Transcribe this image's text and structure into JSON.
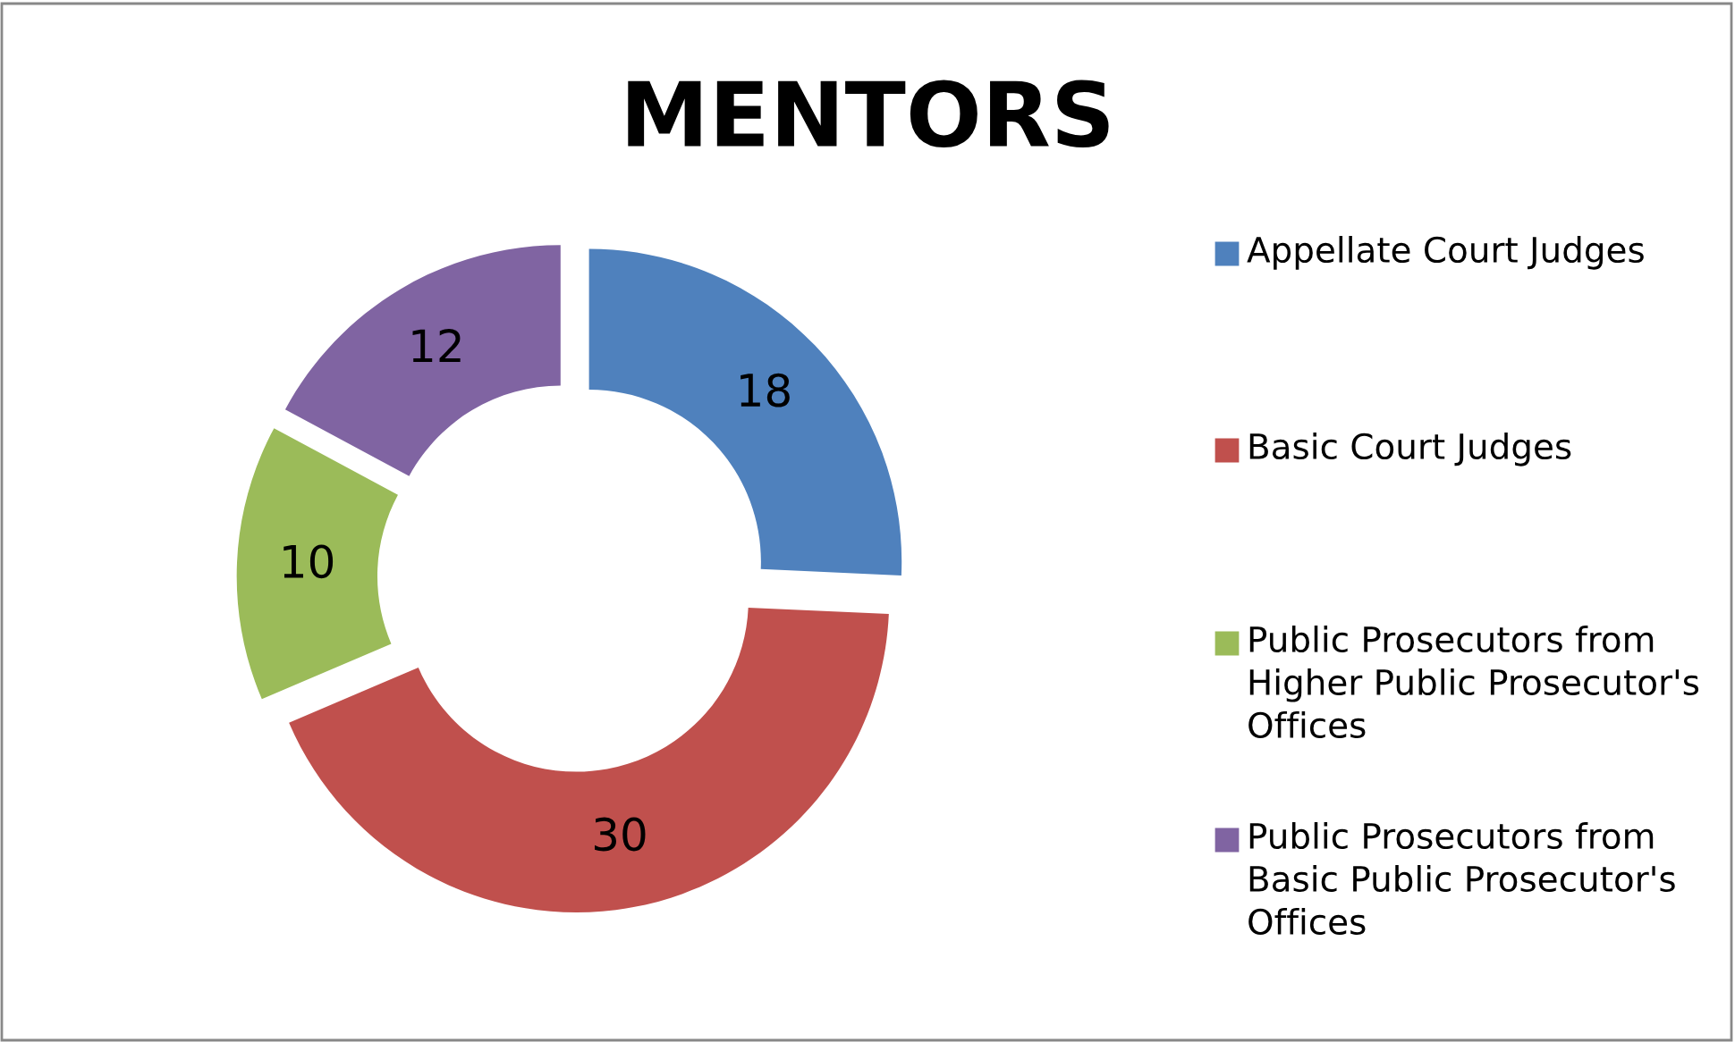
{
  "chart_data": {
    "type": "donut",
    "title": "MENTORS",
    "categories": [
      "Appellate Court Judges",
      "Basic Court Judges",
      "Public Prosecutors from Higher Public Prosecutor's Offices",
      "Public Prosecutors from Basic Public Prosecutor's Offices"
    ],
    "values": [
      18,
      30,
      10,
      12
    ],
    "colors": [
      "#4f81bd",
      "#c0504d",
      "#9bbb59",
      "#8064a2"
    ],
    "data_labels": true,
    "legend": "right"
  }
}
